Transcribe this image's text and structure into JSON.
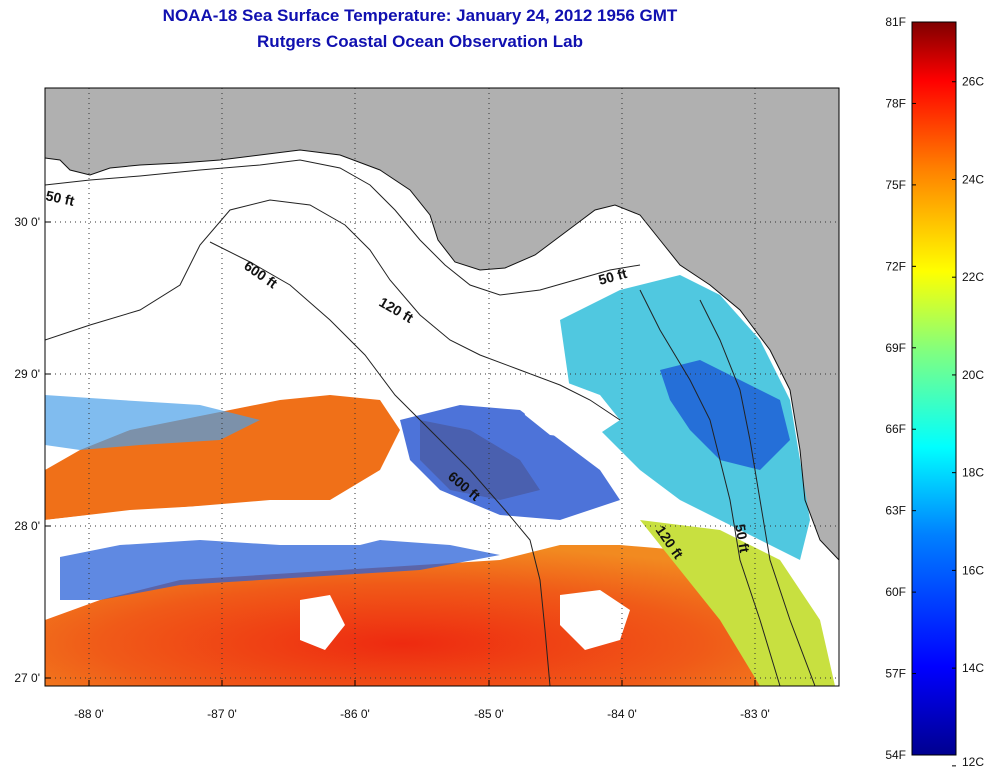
{
  "title": "NOAA-18 Sea Surface Temperature:  January 24, 2012 1956 GMT",
  "subtitle": "Rutgers Coastal Ocean Observation Lab",
  "map": {
    "lon_ticks": [
      "-88 0'",
      "-87 0'",
      "-86 0'",
      "-85 0'",
      "-84 0'",
      "-83 0'"
    ],
    "lat_ticks": [
      "30 0'",
      "29 0'",
      "28 0'",
      "27 0'"
    ],
    "land_color": "#b0b0b0",
    "cloud_color": "#ffffff",
    "depth_contours": [
      "50 ft",
      "600 ft",
      "120 ft",
      "50 ft",
      "600 ft",
      "120 ft",
      "50 ft"
    ]
  },
  "colorbar": {
    "fahrenheit": [
      "81F",
      "78F",
      "75F",
      "72F",
      "69F",
      "66F",
      "63F",
      "60F",
      "57F",
      "54F"
    ],
    "celsius": [
      "26C",
      "24C",
      "22C",
      "20C",
      "18C",
      "16C",
      "14C",
      "12C"
    ],
    "colors": [
      "#7f0000",
      "#ff0000",
      "#ff8000",
      "#ffff00",
      "#80ff80",
      "#00ffff",
      "#0080ff",
      "#0000ff",
      "#00008f"
    ]
  }
}
